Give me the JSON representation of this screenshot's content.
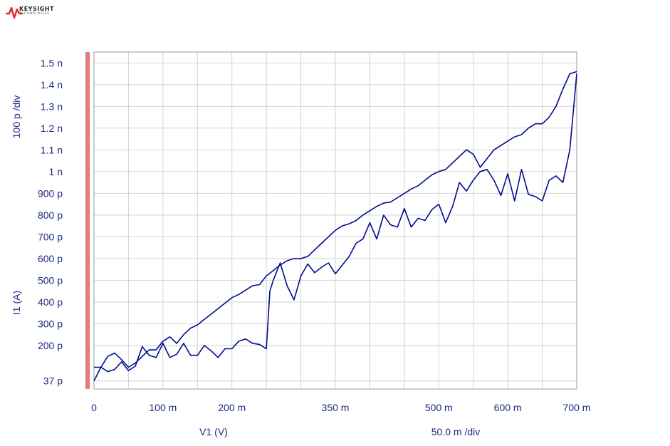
{
  "brand": {
    "name": "KEYSIGHT",
    "sub": "TECHNOLOGIES",
    "mark_color": "#e2262c"
  },
  "colors": {
    "series": "#000c8c",
    "grid": "#d2d2d2",
    "text": "#1c2a80",
    "marker_bar": "#e57a7a"
  },
  "chart_data": {
    "type": "line",
    "xlabel": "V1 (V)",
    "ylabel": "I1 (A)",
    "x_scale_label": "50.0 m /div",
    "y_scale_label": "100 p /div",
    "xlim": [
      0,
      0.7
    ],
    "ylim": [
      0.0,
      1.55e-09
    ],
    "grid": true,
    "x_ticks": [
      {
        "v": 0,
        "label": "0"
      },
      {
        "v": 0.1,
        "label": "100 m"
      },
      {
        "v": 0.2,
        "label": "200 m"
      },
      {
        "v": 0.35,
        "label": "350 m"
      },
      {
        "v": 0.5,
        "label": "500 m"
      },
      {
        "v": 0.6,
        "label": "600 m"
      },
      {
        "v": 0.7,
        "label": "700 m"
      }
    ],
    "y_ticks": [
      {
        "v": 3.7e-11,
        "label": "37 p"
      },
      {
        "v": 2e-10,
        "label": "200 p"
      },
      {
        "v": 3e-10,
        "label": "300 p"
      },
      {
        "v": 4e-10,
        "label": "400 p"
      },
      {
        "v": 5e-10,
        "label": "500 p"
      },
      {
        "v": 6e-10,
        "label": "600 p"
      },
      {
        "v": 7e-10,
        "label": "700 p"
      },
      {
        "v": 8e-10,
        "label": "800 p"
      },
      {
        "v": 9e-10,
        "label": "900 p"
      },
      {
        "v": 1e-09,
        "label": "1 n"
      },
      {
        "v": 1.1e-09,
        "label": "1.1 n"
      },
      {
        "v": 1.2e-09,
        "label": "1.2 n"
      },
      {
        "v": 1.3e-09,
        "label": "1.3 n"
      },
      {
        "v": 1.4e-09,
        "label": "1.4 n"
      },
      {
        "v": 1.5e-09,
        "label": "1.5 n"
      }
    ],
    "series": [
      {
        "x": [
          0,
          0.01,
          0.02,
          0.03,
          0.04,
          0.05,
          0.06,
          0.07,
          0.08,
          0.09,
          0.1,
          0.11,
          0.12,
          0.13,
          0.14,
          0.15,
          0.16,
          0.17,
          0.18,
          0.19,
          0.2,
          0.21,
          0.22,
          0.23,
          0.24,
          0.25,
          0.26,
          0.27,
          0.28,
          0.29,
          0.3,
          0.31,
          0.32,
          0.33,
          0.34,
          0.35,
          0.36,
          0.37,
          0.38,
          0.39,
          0.4,
          0.41,
          0.42,
          0.43,
          0.44,
          0.45,
          0.46,
          0.47,
          0.48,
          0.49,
          0.5,
          0.51,
          0.52,
          0.53,
          0.54,
          0.55,
          0.56,
          0.57,
          0.58,
          0.59,
          0.6,
          0.61,
          0.62,
          0.63,
          0.64,
          0.65,
          0.66,
          0.67,
          0.68,
          0.69,
          0.7
        ],
        "values": [
          1e-10,
          1e-10,
          1.5e-10,
          1.65e-10,
          1.35e-10,
          1e-10,
          1.2e-10,
          1.5e-10,
          1.8e-10,
          1.8e-10,
          2.2e-10,
          2.4e-10,
          2.1e-10,
          2.5e-10,
          2.8e-10,
          2.95e-10,
          3.2e-10,
          3.45e-10,
          3.7e-10,
          3.95e-10,
          4.2e-10,
          4.35e-10,
          4.55e-10,
          4.75e-10,
          4.8e-10,
          5.2e-10,
          5.45e-10,
          5.7e-10,
          5.9e-10,
          6e-10,
          6e-10,
          6.1e-10,
          6.4e-10,
          6.7e-10,
          7e-10,
          7.3e-10,
          7.5e-10,
          7.6e-10,
          7.75e-10,
          8e-10,
          8.2e-10,
          8.4e-10,
          8.55e-10,
          8.6e-10,
          8.8e-10,
          9e-10,
          9.2e-10,
          9.35e-10,
          9.6e-10,
          9.85e-10,
          1e-09,
          1.01e-09,
          1.04e-09,
          1.07e-09,
          1.1e-09,
          1.08e-09,
          1.02e-09,
          1.06e-09,
          1.1e-09,
          1.12e-09,
          1.14e-09,
          1.16e-09,
          1.17e-09,
          1.2e-09,
          1.22e-09,
          1.22e-09,
          1.25e-09,
          1.3e-09,
          1.38e-09,
          1.45e-09,
          1.46e-09
        ]
      },
      {
        "x": [
          0,
          0.01,
          0.02,
          0.03,
          0.04,
          0.05,
          0.06,
          0.07,
          0.08,
          0.09,
          0.1,
          0.11,
          0.12,
          0.13,
          0.14,
          0.15,
          0.16,
          0.17,
          0.18,
          0.19,
          0.2,
          0.21,
          0.22,
          0.23,
          0.24,
          0.25,
          0.255,
          0.26,
          0.27,
          0.28,
          0.29,
          0.3,
          0.31,
          0.32,
          0.33,
          0.34,
          0.35,
          0.36,
          0.37,
          0.38,
          0.39,
          0.4,
          0.41,
          0.42,
          0.43,
          0.44,
          0.45,
          0.46,
          0.47,
          0.48,
          0.49,
          0.5,
          0.51,
          0.52,
          0.53,
          0.54,
          0.55,
          0.56,
          0.57,
          0.58,
          0.59,
          0.6,
          0.61,
          0.62,
          0.63,
          0.64,
          0.65,
          0.66,
          0.67,
          0.68,
          0.69,
          0.7
        ],
        "values": [
          3.7e-11,
          1e-10,
          8e-11,
          9e-11,
          1.25e-10,
          8.5e-11,
          1.05e-10,
          1.95e-10,
          1.55e-10,
          1.45e-10,
          2.1e-10,
          1.45e-10,
          1.6e-10,
          2.1e-10,
          1.55e-10,
          1.55e-10,
          2e-10,
          1.75e-10,
          1.45e-10,
          1.85e-10,
          1.85e-10,
          2.2e-10,
          2.3e-10,
          2.1e-10,
          2.05e-10,
          1.85e-10,
          4.5e-10,
          5e-10,
          5.8e-10,
          4.75e-10,
          4.1e-10,
          5.2e-10,
          5.75e-10,
          5.35e-10,
          5.6e-10,
          5.8e-10,
          5.3e-10,
          5.7e-10,
          6.1e-10,
          6.7e-10,
          6.9e-10,
          7.65e-10,
          6.9e-10,
          8e-10,
          7.55e-10,
          7.45e-10,
          8.3e-10,
          7.45e-10,
          7.85e-10,
          7.75e-10,
          8.25e-10,
          8.5e-10,
          7.65e-10,
          8.4e-10,
          9.5e-10,
          9.1e-10,
          9.6e-10,
          1e-09,
          1.01e-09,
          9.6e-10,
          8.9e-10,
          9.9e-10,
          8.65e-10,
          1.01e-09,
          8.95e-10,
          8.85e-10,
          8.65e-10,
          9.6e-10,
          9.8e-10,
          9.5e-10,
          1.1e-09,
          1.45e-09
        ]
      }
    ]
  }
}
